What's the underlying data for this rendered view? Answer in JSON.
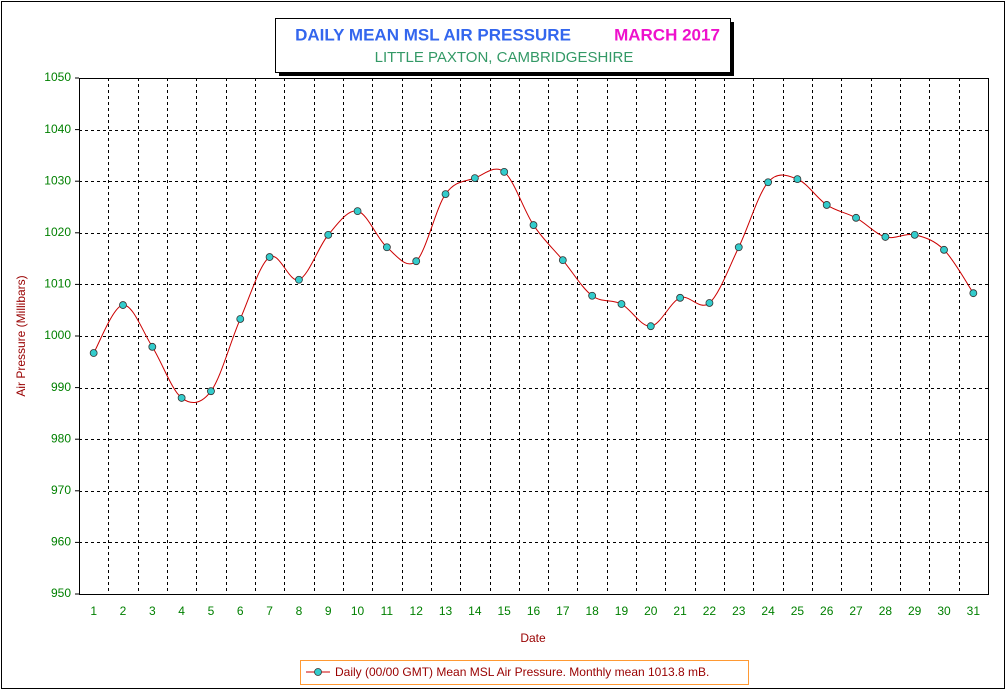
{
  "chart_data": {
    "type": "line",
    "title": "DAILY MEAN MSL AIR PRESSURE",
    "title_month": "MARCH 2017",
    "subtitle": "LITTLE PAXTON, CAMBRIDGESHIRE",
    "x_label": "Date",
    "y_label": "Air Pressure (Millibars)",
    "categories": [
      "1",
      "2",
      "3",
      "4",
      "5",
      "6",
      "7",
      "8",
      "9",
      "10",
      "11",
      "12",
      "13",
      "14",
      "15",
      "16",
      "17",
      "18",
      "19",
      "20",
      "21",
      "22",
      "23",
      "24",
      "25",
      "26",
      "27",
      "28",
      "29",
      "30",
      "31"
    ],
    "series": [
      {
        "name": "Daily (00/00 GMT) Mean MSL Air Pressure. Monthly mean 1013.8 mB.",
        "color": "#cc0000",
        "marker_color": "#33cccc",
        "values": [
          996.7,
          1006.0,
          997.9,
          988.0,
          989.3,
          1003.3,
          1015.3,
          1010.9,
          1019.6,
          1024.2,
          1017.2,
          1014.5,
          1027.5,
          1030.6,
          1031.8,
          1021.5,
          1014.7,
          1007.8,
          1006.2,
          1001.9,
          1007.4,
          1006.4,
          1017.2,
          1029.8,
          1030.4,
          1025.4,
          1022.9,
          1019.2,
          1019.6,
          1016.7,
          1008.3
        ]
      }
    ],
    "ylim": [
      950,
      1050
    ],
    "yticks": [
      950,
      960,
      970,
      980,
      990,
      1000,
      1010,
      1020,
      1030,
      1040,
      1050
    ],
    "grid": true,
    "legend": "bottom"
  }
}
